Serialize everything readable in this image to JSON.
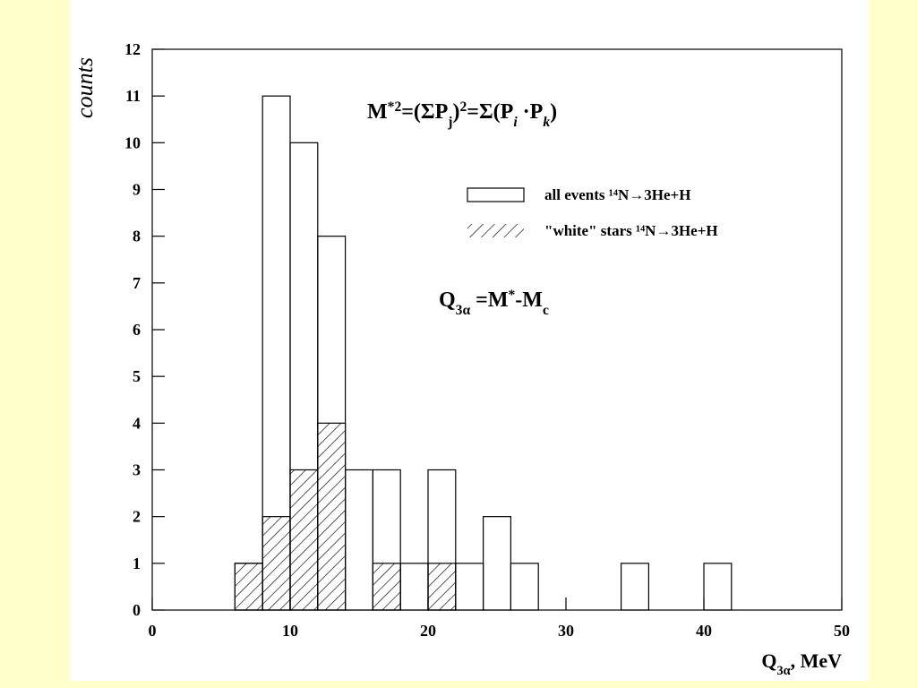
{
  "chart_data": {
    "type": "histogram",
    "ylabel": "counts",
    "xlabel_parts": [
      {
        "text": "Q"
      },
      {
        "text": "3α",
        "pos": "sub"
      },
      {
        "text": ", MeV"
      }
    ],
    "annotations": [
      {
        "parts": [
          {
            "text": "M"
          },
          {
            "text": "*2",
            "pos": "sup"
          },
          {
            "text": "=(ΣP"
          },
          {
            "text": "j",
            "pos": "sub"
          },
          {
            "text": ")"
          },
          {
            "text": "2",
            "pos": "sup"
          },
          {
            "text": "=Σ(P"
          },
          {
            "text": "i",
            "pos": "sub",
            "italic": true
          },
          {
            "text": " ·P"
          },
          {
            "text": "k",
            "pos": "sub",
            "italic": true
          },
          {
            "text": ")"
          }
        ]
      },
      {
        "parts": [
          {
            "text": "Q"
          },
          {
            "text": "3α",
            "pos": "sub"
          },
          {
            "text": " =M"
          },
          {
            "text": "*",
            "pos": "sup"
          },
          {
            "text": "-M"
          },
          {
            "text": "c",
            "pos": "sub"
          }
        ]
      }
    ],
    "bins": [
      0,
      2,
      4,
      6,
      8,
      10,
      12,
      14,
      16,
      18,
      20,
      22,
      24,
      26,
      28,
      30,
      32,
      34,
      36,
      38,
      40,
      42,
      44,
      46,
      48,
      50
    ],
    "series": [
      {
        "name": "all events ¹⁴N→3He+H",
        "color": "#000000",
        "fill": "none",
        "values": [
          0,
          0,
          0,
          1,
          11,
          10,
          8,
          3,
          3,
          1,
          3,
          1,
          2,
          1,
          0,
          0,
          0,
          1,
          0,
          0,
          1,
          0,
          0,
          0,
          0
        ]
      },
      {
        "name": "\"white\" stars ¹⁴N→3He+H",
        "color": "#000000",
        "fill": "hatch",
        "values": [
          0,
          0,
          0,
          1,
          2,
          3,
          4,
          0,
          1,
          0,
          1,
          0,
          0,
          0,
          0,
          0,
          0,
          0,
          0,
          0,
          0,
          0,
          0,
          0,
          0
        ]
      }
    ],
    "xlim": [
      0,
      50
    ],
    "xticks": [
      0,
      10,
      20,
      30,
      40,
      50
    ],
    "ylim": [
      0,
      12
    ],
    "yticks": [
      0,
      1,
      2,
      3,
      4,
      5,
      6,
      7,
      8,
      9,
      10,
      11,
      12
    ],
    "legend": "upper right"
  }
}
